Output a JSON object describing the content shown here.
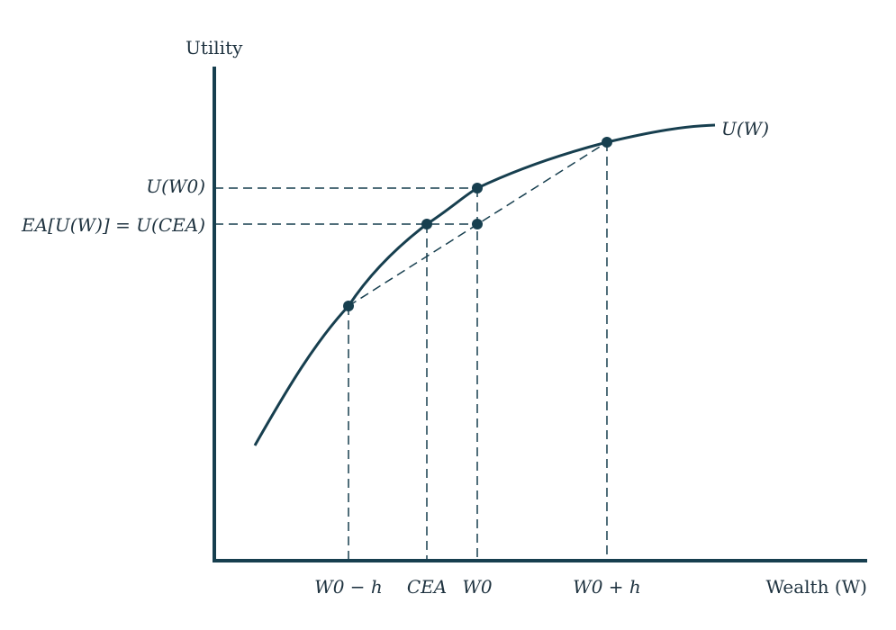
{
  "colors": {
    "curve": "#173f4f",
    "axis": "#173f4f",
    "dashed": "#173f4f",
    "point": "#173f4f",
    "text": "#1f3340"
  },
  "labels": {
    "y_axis": "Utility",
    "x_axis": "Wealth (W)",
    "curve": "U(W)",
    "u_w0": "U(W0)",
    "ea_uw_eq_u_cea": "EA[U(W)] = U(CEA)",
    "w0_minus_h": "W0 − h",
    "ce_a": "CEA",
    "w0": "W0",
    "w0_plus_h": "W0 + h"
  },
  "diagram": {
    "type": "utility-curve",
    "points": [
      {
        "name": "W0 - h",
        "kind": "curve"
      },
      {
        "name": "CEA",
        "kind": "curve"
      },
      {
        "name": "W0",
        "kind": "curve"
      },
      {
        "name": "W0 + h",
        "kind": "curve"
      },
      {
        "name": "expected-utility",
        "kind": "chord"
      }
    ]
  }
}
